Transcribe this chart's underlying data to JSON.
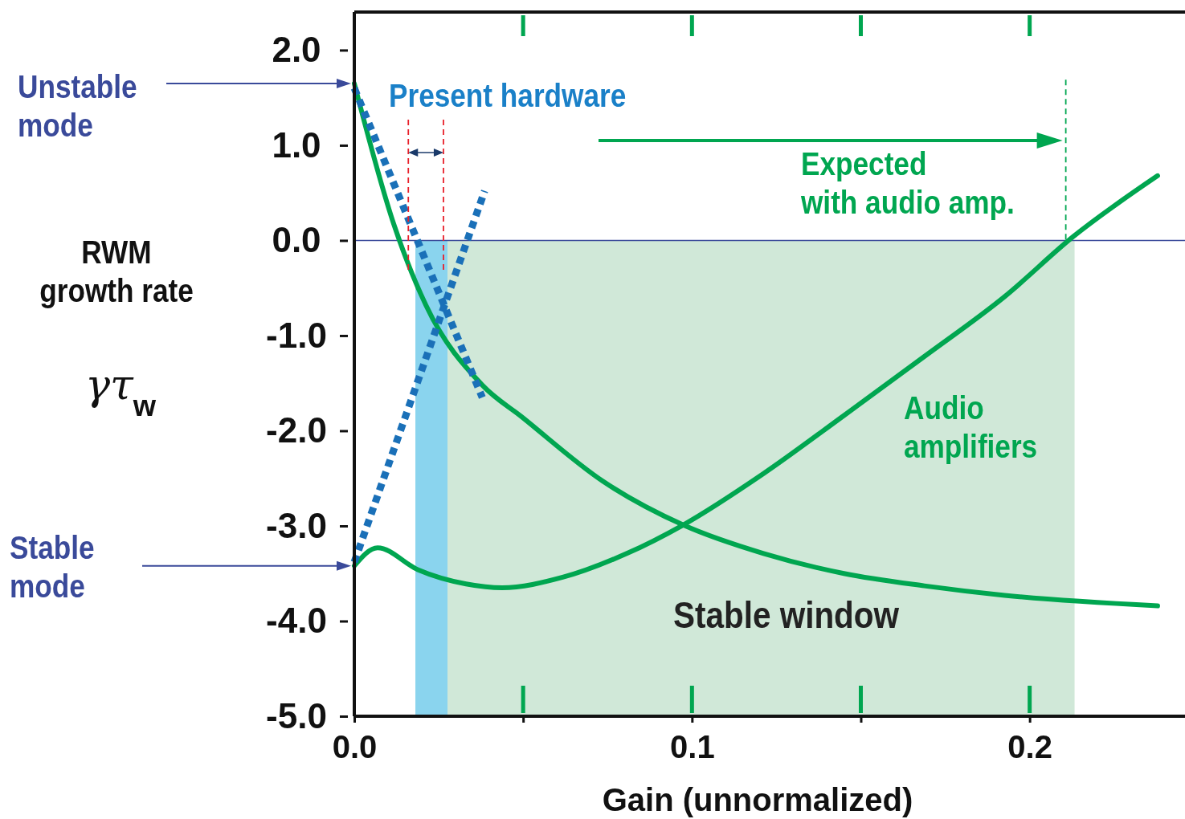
{
  "chart_data": {
    "type": "line",
    "xlabel": "Gain (unnormalized)",
    "ylabel": "RWM growth rate",
    "xlim": [
      0,
      0.246
    ],
    "ylim": [
      -5,
      2.4
    ],
    "xticks": [
      {
        "value": 0,
        "label": "0.0"
      },
      {
        "value": 0.05,
        "label": null
      },
      {
        "value": 0.1,
        "label": "0.1"
      },
      {
        "value": 0.15,
        "label": null
      },
      {
        "value": 0.2,
        "label": "0.2"
      }
    ],
    "yticks": [
      {
        "value": 2,
        "label": "2.0"
      },
      {
        "value": 1,
        "label": "1.0"
      },
      {
        "value": 0,
        "label": "0.0"
      },
      {
        "value": -1,
        "label": "-1.0"
      },
      {
        "value": -2,
        "label": "-2.0"
      },
      {
        "value": -3,
        "label": "-3.0"
      },
      {
        "value": -4,
        "label": "-4.0"
      },
      {
        "value": -5,
        "label": "-5.0"
      }
    ],
    "marker": "none",
    "series": [
      {
        "color": "#00a650",
        "line_style": "solid",
        "x": [
          0,
          0.0117,
          0.0212,
          0.0379,
          0.0498,
          0.0736,
          0.0974,
          0.1212,
          0.145,
          0.1688,
          0.1926,
          0.2379
        ],
        "values": [
          1.65,
          0.17,
          -0.68,
          -1.52,
          -1.86,
          -2.53,
          -2.99,
          -3.29,
          -3.5,
          -3.63,
          -3.73,
          -3.84
        ]
      },
      {
        "color": "#00a650",
        "line_style": "solid",
        "x": [
          0,
          0.0069,
          0.0188,
          0.0331,
          0.0438,
          0.0617,
          0.0807,
          0.0974,
          0.1212,
          0.145,
          0.1688,
          0.1926,
          0.2129,
          0.2379
        ],
        "values": [
          -3.42,
          -3.23,
          -3.46,
          -3.61,
          -3.65,
          -3.54,
          -3.29,
          -2.99,
          -2.45,
          -1.84,
          -1.22,
          -0.59,
          0.04,
          0.68
        ]
      },
      {
        "color": "#1a70b8",
        "line_style": "dotted",
        "x": [
          0,
          0.0379
        ],
        "values": [
          1.6,
          -1.65
        ]
      },
      {
        "color": "#1a70b8",
        "line_style": "dotted",
        "x": [
          0,
          0.0386
        ],
        "values": [
          -3.38,
          0.52
        ]
      },
      {
        "color": "#e8202a",
        "line_style": "dashed",
        "x": [
          0.016,
          0.016
        ],
        "values": [
          1.27,
          -0.34
        ]
      },
      {
        "color": "#e8202a",
        "line_style": "dashed",
        "x": [
          0.0264,
          0.0264
        ],
        "values": [
          1.27,
          -0.34
        ]
      },
      {
        "color": "#00a650",
        "line_style": "dashed",
        "x": [
          0.2107,
          0.2107
        ],
        "values": [
          1.69,
          0
        ]
      }
    ],
    "bands": [
      {
        "axis": "x",
        "from": 0.0181,
        "to": 0.2133,
        "color": "#d0e8d8",
        "label": "Stable window"
      },
      {
        "axis": "x",
        "from": 0.0181,
        "to": 0.0276,
        "color": "#8ad4ee"
      }
    ],
    "ref_lines": [
      {
        "axis": "y",
        "value": 0,
        "color": "#3a4a9a",
        "line_style": "solid"
      }
    ],
    "annotations": [
      "Unstable mode",
      "Stable mode",
      "Present hardware",
      "Expected with audio amp.",
      "Audio amplifiers",
      "γτ$_{w}$"
    ]
  }
}
